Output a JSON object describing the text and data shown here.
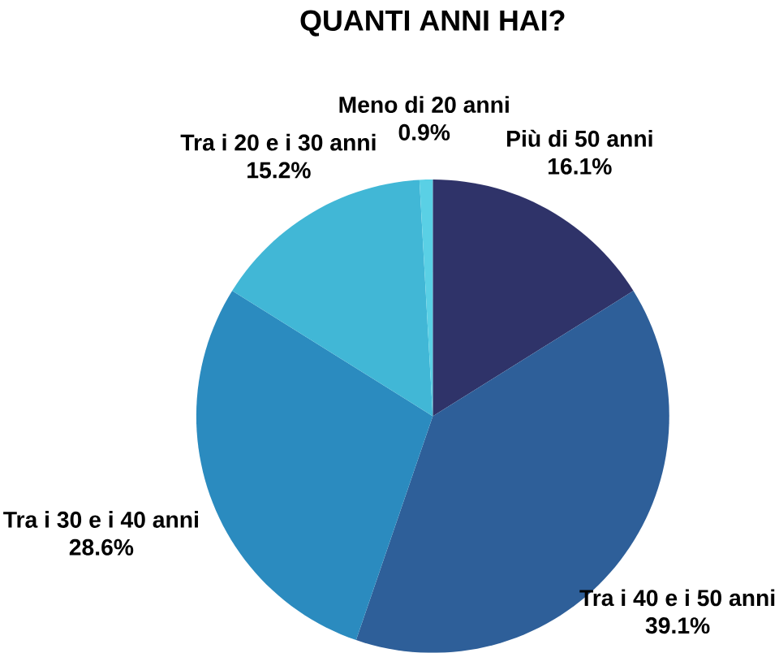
{
  "chart_data": {
    "type": "pie",
    "title": "QUANTI ANNI HAI?",
    "categories": [
      "Più di 50 anni",
      "Tra i 40 e i 50 anni",
      "Tra i 30 e i 40 anni",
      "Tra i 20 e i 30 anni",
      "Meno di 20 anni"
    ],
    "values": [
      16.1,
      39.1,
      28.6,
      15.2,
      0.9
    ],
    "colors": [
      "#2f3369",
      "#2e5f99",
      "#2b8bbf",
      "#41b7d6",
      "#5ad0e5"
    ],
    "value_labels": [
      "16.1%",
      "39.1%",
      "28.6%",
      "15.2%",
      "0.9%"
    ]
  }
}
